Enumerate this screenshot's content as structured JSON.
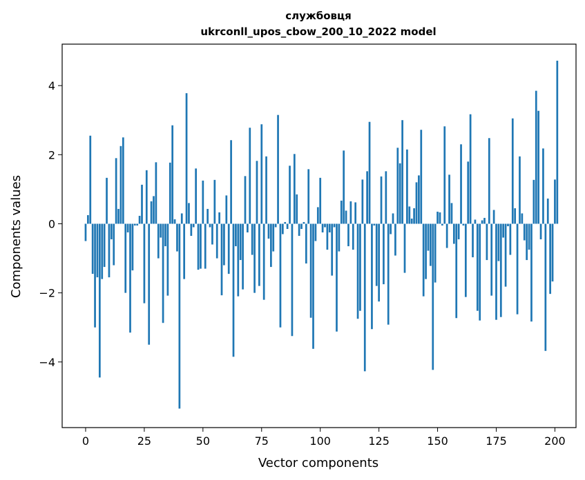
{
  "chart_data": {
    "type": "bar",
    "title_line1": "службовця",
    "title_line2": "ukrconll_upos_cbow_200_10_2022 model",
    "xlabel": "Vector components",
    "ylabel": "Components values",
    "xlim": [
      -10,
      209
    ],
    "ylim": [
      -5.9,
      5.2
    ],
    "xticks": [
      0,
      25,
      50,
      75,
      100,
      125,
      150,
      175,
      200
    ],
    "yticks": [
      -4,
      -2,
      0,
      2,
      4
    ],
    "xtick_labels": [
      "0",
      "25",
      "50",
      "75",
      "100",
      "125",
      "150",
      "175",
      "200"
    ],
    "ytick_labels": [
      "−4",
      "−2",
      "0",
      "2",
      "4"
    ],
    "bar_color": "#1f77b4",
    "grid": false,
    "values": [
      -0.5,
      0.25,
      2.55,
      -1.45,
      -3.0,
      -1.55,
      -4.45,
      -1.6,
      -1.25,
      1.33,
      -1.55,
      -0.45,
      -1.2,
      1.9,
      0.43,
      2.25,
      2.5,
      -2.0,
      -0.25,
      -3.15,
      -1.35,
      -0.05,
      -0.05,
      0.23,
      1.13,
      -2.3,
      1.55,
      -3.5,
      0.65,
      0.8,
      1.78,
      -1.0,
      -0.4,
      -2.87,
      -0.65,
      -2.08,
      1.77,
      2.85,
      0.13,
      -0.8,
      -5.35,
      0.3,
      -1.6,
      3.78,
      0.6,
      -0.35,
      -0.1,
      1.6,
      -1.33,
      -1.3,
      1.25,
      -1.3,
      0.43,
      -0.1,
      -0.6,
      1.27,
      -1.0,
      0.33,
      -2.07,
      -1.2,
      0.82,
      -1.45,
      2.42,
      -3.85,
      -0.65,
      -2.1,
      -1.05,
      -1.9,
      1.38,
      -0.25,
      2.78,
      -0.9,
      -2.0,
      1.82,
      -1.8,
      2.88,
      -2.2,
      1.95,
      -0.43,
      -1.25,
      -0.8,
      -0.1,
      3.15,
      -3.0,
      -0.3,
      0.05,
      -0.15,
      1.68,
      -3.25,
      2.02,
      0.85,
      -0.35,
      -0.15,
      0.05,
      -1.15,
      1.58,
      -2.72,
      -3.62,
      -0.5,
      0.48,
      1.33,
      -0.25,
      -0.1,
      -0.75,
      -0.25,
      -1.5,
      -0.1,
      -3.12,
      -0.8,
      0.67,
      2.12,
      0.38,
      -0.65,
      0.65,
      -0.75,
      0.62,
      -2.75,
      -2.52,
      1.28,
      -4.27,
      1.52,
      2.95,
      -3.05,
      -0.05,
      -1.8,
      -2.25,
      1.37,
      -1.75,
      1.52,
      -2.92,
      -0.3,
      0.3,
      -0.92,
      2.2,
      1.75,
      3.0,
      -1.42,
      2.15,
      0.5,
      0.15,
      0.45,
      1.2,
      1.4,
      2.72,
      -2.1,
      -1.6,
      -0.78,
      -1.22,
      -4.23,
      -1.7,
      0.35,
      0.33,
      -0.05,
      2.82,
      -0.7,
      1.42,
      0.6,
      -0.58,
      -2.73,
      -0.45,
      2.3,
      -0.05,
      -2.12,
      1.8,
      3.17,
      -0.97,
      0.12,
      -2.52,
      -2.8,
      0.1,
      0.17,
      -1.05,
      2.48,
      -2.08,
      0.4,
      -2.78,
      -1.08,
      -2.7,
      -0.4,
      -1.82,
      -0.07,
      -0.9,
      3.05,
      0.45,
      -2.62,
      1.95,
      0.3,
      -0.48,
      -1.05,
      -0.75,
      -2.83,
      1.27,
      3.85,
      3.27,
      -0.45,
      2.18,
      -3.68,
      0.73,
      -2.03,
      -1.67,
      1.28,
      4.72
    ]
  }
}
